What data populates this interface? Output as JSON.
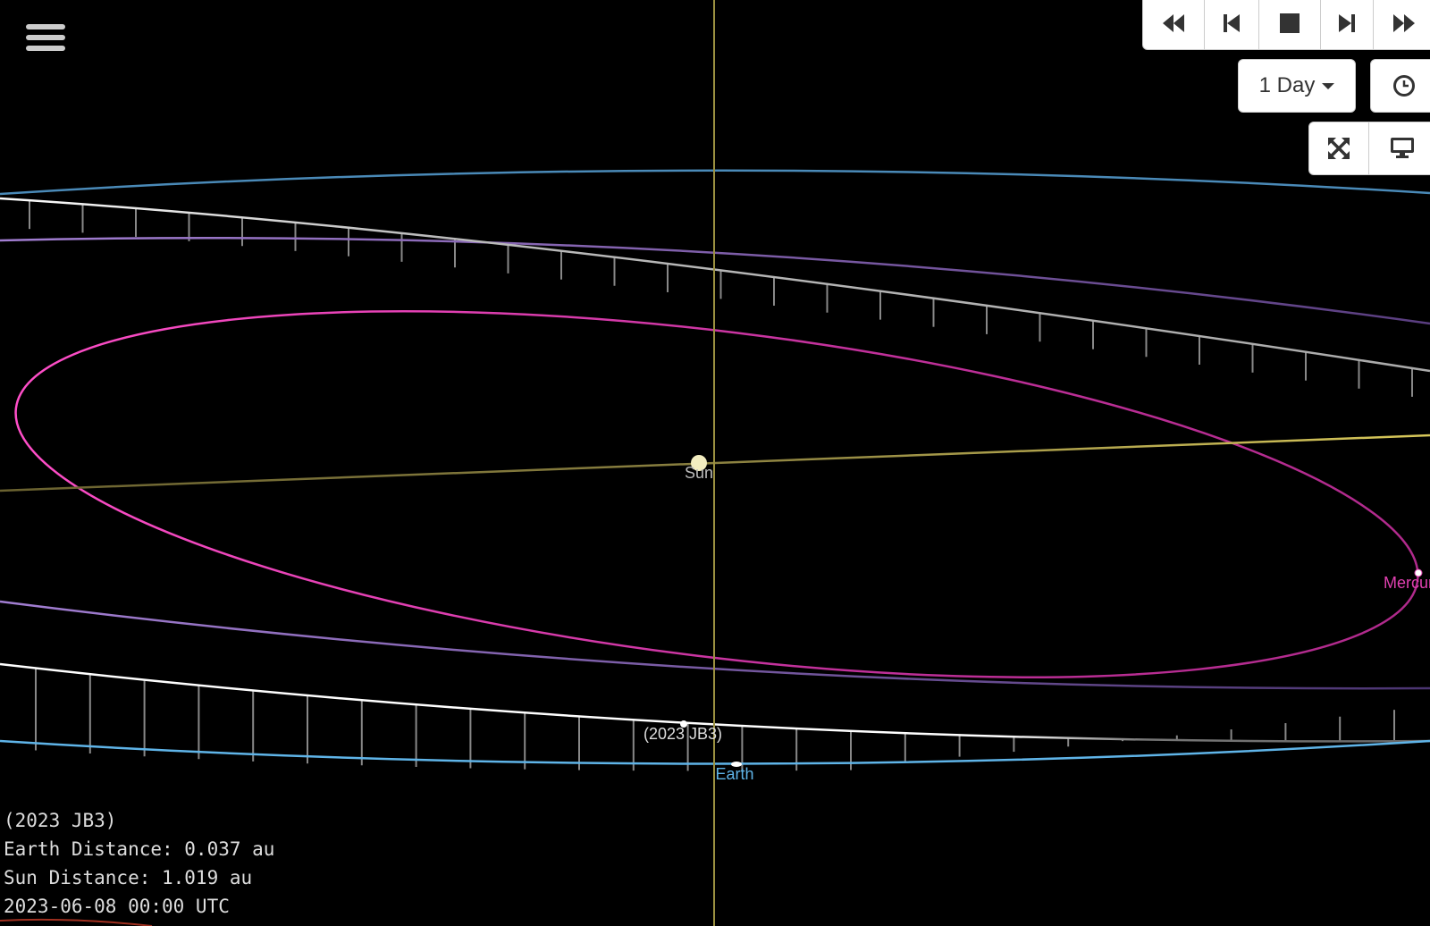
{
  "controls": {
    "playback": [
      {
        "name": "fast-backward",
        "glyph": "fast-backward-icon"
      },
      {
        "name": "step-backward",
        "glyph": "step-backward-icon"
      },
      {
        "name": "stop",
        "glyph": "stop-icon"
      },
      {
        "name": "step-forward",
        "glyph": "step-forward-icon"
      },
      {
        "name": "fast-forward",
        "glyph": "fast-forward-icon"
      }
    ],
    "step_select": "1 Day",
    "icons": [
      "menu-icon",
      "clock-icon",
      "fullscreen-icon",
      "monitor-icon"
    ]
  },
  "scene": {
    "labels": {
      "sun": "Sun",
      "earth": "Earth",
      "mercury": "Mercury",
      "asteroid": "(2023 JB3)"
    },
    "colors": {
      "sun": "#f3edc0",
      "earth": "#5fb4e8",
      "mercury": "#e040b0",
      "venus": "#9a78c8",
      "mars": "#4a8ab8",
      "asteroid": "#ffffff",
      "ecliptic": "#c8b84a"
    }
  },
  "info": {
    "object": "(2023 JB3)",
    "earth_distance": "Earth Distance: 0.037 au",
    "sun_distance": "Sun Distance: 1.019 au",
    "datetime": "2023-06-08 00:00 UTC"
  }
}
